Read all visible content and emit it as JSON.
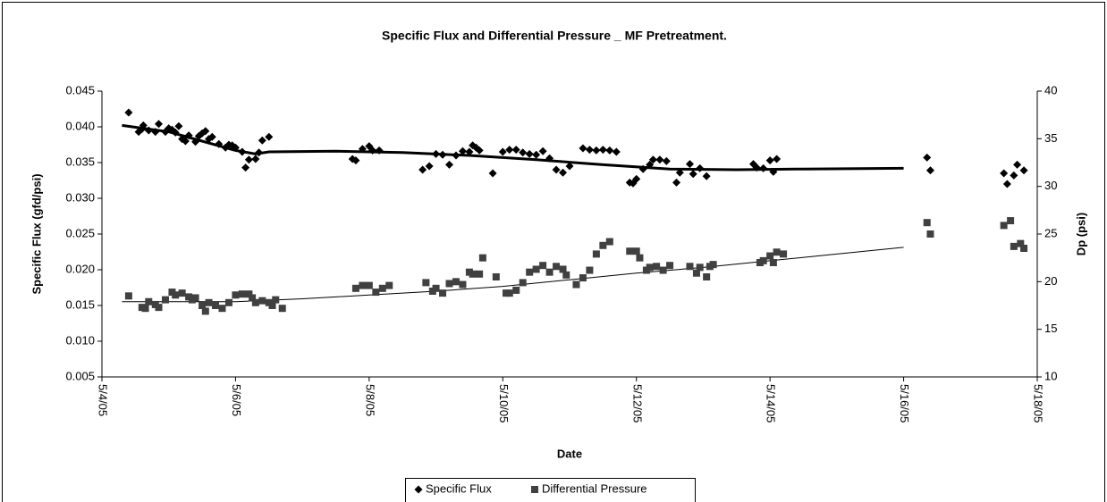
{
  "chart_data": {
    "type": "scatter",
    "title": "Specific Flux and Differential Pressure _ MF Pretreatment.",
    "x_label": "Date",
    "y_label": "Specific Flux (gfd/psi)",
    "y2_label": "Dp (psi)",
    "legend": "bottom",
    "xlim": [
      4,
      18
    ],
    "xticks": [
      {
        "value": 4,
        "label": "5/4/05"
      },
      {
        "value": 6,
        "label": "5/6/05"
      },
      {
        "value": 8,
        "label": "5/8/05"
      },
      {
        "value": 10,
        "label": "5/10/05"
      },
      {
        "value": 12,
        "label": "5/12/05"
      },
      {
        "value": 14,
        "label": "5/14/05"
      },
      {
        "value": 16,
        "label": "5/16/05"
      },
      {
        "value": 18,
        "label": "5/18/05"
      }
    ],
    "ylim": [
      0.005,
      0.045
    ],
    "yticks": [
      0.005,
      {
        "value": 0.01,
        "label": "0.010"
      },
      0.015,
      {
        "value": 0.02,
        "label": "0.020"
      },
      0.025,
      {
        "value": 0.03,
        "label": "0.030"
      },
      0.035,
      {
        "value": 0.04,
        "label": "0.040"
      },
      0.045
    ],
    "y2lim": [
      10,
      40
    ],
    "y2ticks": [
      10,
      15,
      20,
      25,
      30,
      35,
      40
    ],
    "series": [
      {
        "name": "Specific Flux",
        "color": "#000000",
        "marker": "diamond",
        "x": [
          4.4,
          4.55,
          4.6,
          4.62,
          4.7,
          4.8,
          4.85,
          4.95,
          5.0,
          5.05,
          5.1,
          5.15,
          5.2,
          5.25,
          5.3,
          5.4,
          5.45,
          5.5,
          5.55,
          5.6,
          5.65,
          5.75,
          5.85,
          5.9,
          5.95,
          6.0,
          6.1,
          6.15,
          6.2,
          6.3,
          6.35,
          6.4,
          6.5,
          7.75,
          7.8,
          7.9,
          8.0,
          8.05,
          8.15,
          8.8,
          8.9,
          9.0,
          9.1,
          9.2,
          9.3,
          9.4,
          9.5,
          9.55,
          9.6,
          9.65,
          9.85,
          10.0,
          10.1,
          10.2,
          10.3,
          10.4,
          10.5,
          10.6,
          10.7,
          10.8,
          10.9,
          11.0,
          11.2,
          11.3,
          11.4,
          11.5,
          11.6,
          11.7,
          11.9,
          11.95,
          12.0,
          12.1,
          12.2,
          12.25,
          12.35,
          12.45,
          12.6,
          12.65,
          12.8,
          12.85,
          12.95,
          13.05,
          13.75,
          13.8,
          13.9,
          14.0,
          14.05,
          14.1,
          16.35,
          16.4,
          17.5,
          17.55,
          17.65,
          17.7,
          17.8
        ],
        "values": [
          0.042,
          0.0393,
          0.0397,
          0.0402,
          0.0395,
          0.0393,
          0.0404,
          0.0393,
          0.0398,
          0.0396,
          0.0392,
          0.0401,
          0.0383,
          0.038,
          0.0388,
          0.0379,
          0.0387,
          0.0391,
          0.0394,
          0.0383,
          0.0386,
          0.0376,
          0.0371,
          0.0375,
          0.0374,
          0.0371,
          0.0365,
          0.0343,
          0.0354,
          0.0355,
          0.0364,
          0.0381,
          0.0386,
          0.0355,
          0.0353,
          0.0369,
          0.0373,
          0.0367,
          0.0367,
          0.034,
          0.0345,
          0.0362,
          0.0361,
          0.0347,
          0.036,
          0.0366,
          0.0365,
          0.0374,
          0.0371,
          0.0367,
          0.0335,
          0.0365,
          0.0368,
          0.0368,
          0.0364,
          0.0362,
          0.0361,
          0.0366,
          0.0356,
          0.034,
          0.0336,
          0.0345,
          0.037,
          0.0368,
          0.0367,
          0.0368,
          0.0367,
          0.0365,
          0.0322,
          0.0321,
          0.0327,
          0.0341,
          0.0347,
          0.0354,
          0.0354,
          0.0352,
          0.0322,
          0.0336,
          0.0348,
          0.0334,
          0.0342,
          0.0331,
          0.0348,
          0.0343,
          0.0342,
          0.0353,
          0.0337,
          0.0355,
          0.0357,
          0.0339,
          0.0335,
          0.032,
          0.0332,
          0.0347,
          0.0339
        ],
        "trend": {
          "x": [
            4.3,
            5,
            5.5,
            6,
            6.3,
            6.5,
            7.5,
            8.5,
            9.5,
            10.5,
            11.5,
            12.5,
            13.5,
            14.5,
            16
          ],
          "values": [
            0.0402,
            0.0393,
            0.038,
            0.0367,
            0.0362,
            0.0365,
            0.0366,
            0.0364,
            0.036,
            0.0354,
            0.0347,
            0.0341,
            0.034,
            0.0341,
            0.0342
          ]
        }
      },
      {
        "name": "Differential Pressure",
        "color": "#404040",
        "marker": "square",
        "axis": "y2",
        "x": [
          4.4,
          4.6,
          4.65,
          4.7,
          4.8,
          4.85,
          4.95,
          5.05,
          5.1,
          5.2,
          5.3,
          5.35,
          5.4,
          5.5,
          5.55,
          5.6,
          5.7,
          5.8,
          5.9,
          6.0,
          6.1,
          6.2,
          6.25,
          6.3,
          6.4,
          6.5,
          6.55,
          6.6,
          6.7,
          7.8,
          7.9,
          8.0,
          8.1,
          8.2,
          8.3,
          8.85,
          8.95,
          9.0,
          9.1,
          9.2,
          9.3,
          9.4,
          9.5,
          9.55,
          9.65,
          9.7,
          9.9,
          10.05,
          10.1,
          10.2,
          10.3,
          10.4,
          10.5,
          10.6,
          10.7,
          10.8,
          10.9,
          10.95,
          11.1,
          11.2,
          11.3,
          11.4,
          11.5,
          11.6,
          11.9,
          12.0,
          12.05,
          12.15,
          12.2,
          12.3,
          12.4,
          12.5,
          12.8,
          12.9,
          12.95,
          13.05,
          13.1,
          13.15,
          13.85,
          13.9,
          14.0,
          14.05,
          14.1,
          14.2,
          16.35,
          16.4,
          17.5,
          17.6,
          17.65,
          17.75,
          17.8
        ],
        "values": [
          18.5,
          17.3,
          17.2,
          17.9,
          17.6,
          17.3,
          18.1,
          18.9,
          18.6,
          18.8,
          18.4,
          18.1,
          18.3,
          17.5,
          16.9,
          17.8,
          17.5,
          17.2,
          17.8,
          18.6,
          18.7,
          18.7,
          18.3,
          17.8,
          18.0,
          17.8,
          17.5,
          18.1,
          17.2,
          19.3,
          19.6,
          19.6,
          18.9,
          19.3,
          19.6,
          19.9,
          19.0,
          19.3,
          18.8,
          19.8,
          20.0,
          19.7,
          21.0,
          20.8,
          20.8,
          22.5,
          20.5,
          18.8,
          18.8,
          19.1,
          19.9,
          21.0,
          21.3,
          21.7,
          21.0,
          21.6,
          21.3,
          20.7,
          19.7,
          20.4,
          21.2,
          22.9,
          23.8,
          24.2,
          23.2,
          23.2,
          22.5,
          21.2,
          21.5,
          21.6,
          21.2,
          21.7,
          21.6,
          20.9,
          21.5,
          20.5,
          21.6,
          21.8,
          22.0,
          22.2,
          22.7,
          22.0,
          23.1,
          22.9,
          26.2,
          25.0,
          25.9,
          26.4,
          23.7,
          24.0,
          23.5
        ],
        "trend": {
          "x": [
            4.3,
            6,
            7,
            8,
            9,
            10,
            11,
            12,
            13,
            14,
            15,
            16
          ],
          "values": [
            17.9,
            17.9,
            18.2,
            18.6,
            19.0,
            19.5,
            20.2,
            20.9,
            21.5,
            22.2,
            22.9,
            23.6
          ]
        }
      }
    ]
  }
}
